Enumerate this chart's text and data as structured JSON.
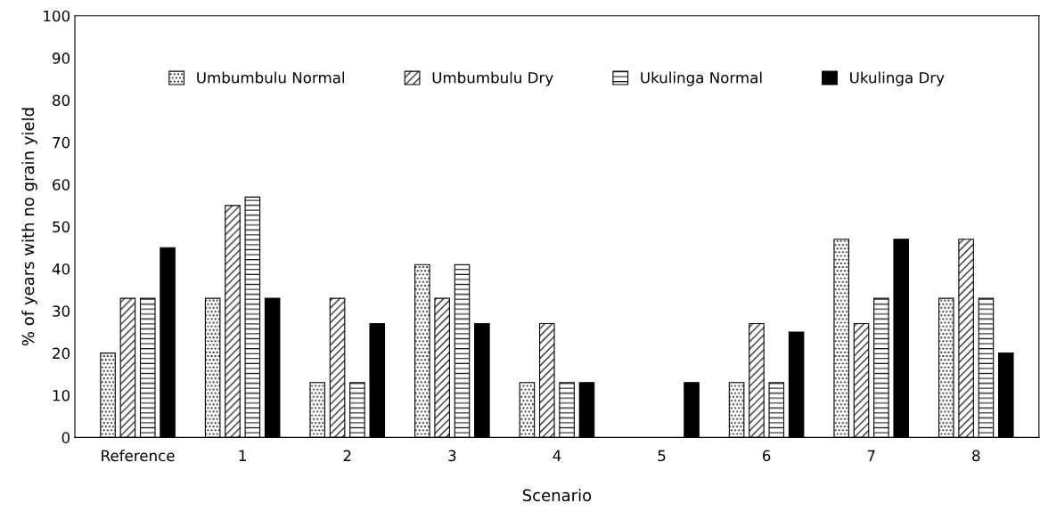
{
  "chart_data": {
    "type": "bar",
    "xlabel": "Scenario",
    "ylabel": "% of years with no grain yield",
    "categories": [
      "Reference",
      "1",
      "2",
      "3",
      "4",
      "5",
      "6",
      "7",
      "8"
    ],
    "series": [
      {
        "name": "Umbumbulu Normal",
        "color": "#000000",
        "values": [
          20,
          33,
          13,
          41,
          13,
          0,
          13,
          47,
          33
        ]
      },
      {
        "name": "Umbumbulu Dry",
        "color": "#000000",
        "values": [
          33,
          55,
          33,
          33,
          27,
          0,
          27,
          27,
          47
        ]
      },
      {
        "name": "Ukulinga Normal",
        "color": "#000000",
        "values": [
          33,
          57,
          13,
          41,
          13,
          0,
          13,
          33,
          33
        ]
      },
      {
        "name": "Ukulinga Dry",
        "color": "#000000",
        "values": [
          45,
          33,
          27,
          27,
          13,
          13,
          25,
          47,
          20
        ]
      }
    ],
    "ylim": [
      0,
      100
    ],
    "yticks": [
      0,
      10,
      20,
      30,
      40,
      50,
      60,
      70,
      80,
      90,
      100
    ],
    "grid": false,
    "legend": "top"
  }
}
